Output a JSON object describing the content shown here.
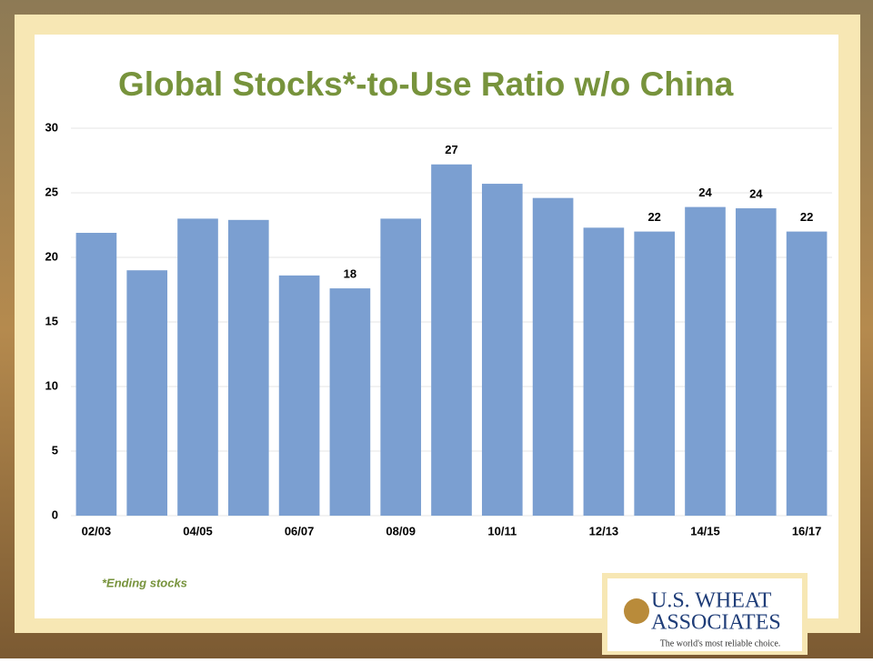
{
  "chart_data": {
    "type": "bar",
    "title": "Global Stocks*-to-Use Ratio w/o China",
    "categories": [
      "02/03",
      null,
      "04/05",
      null,
      "06/07",
      null,
      "08/09",
      null,
      "10/11",
      null,
      "12/13",
      null,
      "14/15",
      null,
      "16/17"
    ],
    "values": [
      21.9,
      19.0,
      23.0,
      22.9,
      18.6,
      17.6,
      23.0,
      27.2,
      25.7,
      24.6,
      22.3,
      22.0,
      23.9,
      23.8,
      22.0
    ],
    "value_labels": [
      null,
      null,
      null,
      null,
      null,
      "18",
      null,
      "27",
      null,
      null,
      null,
      "22",
      "24",
      "24",
      "22"
    ],
    "color": "#7b9fd1",
    "ylim": [
      0,
      30
    ],
    "yticks": [
      0,
      5,
      10,
      15,
      20,
      25,
      30
    ],
    "grid": true
  },
  "footnote": "*Ending stocks",
  "logo": {
    "line1": "U.S. WHEAT",
    "line2": "ASSOCIATES",
    "tagline": "The world's most reliable choice."
  }
}
